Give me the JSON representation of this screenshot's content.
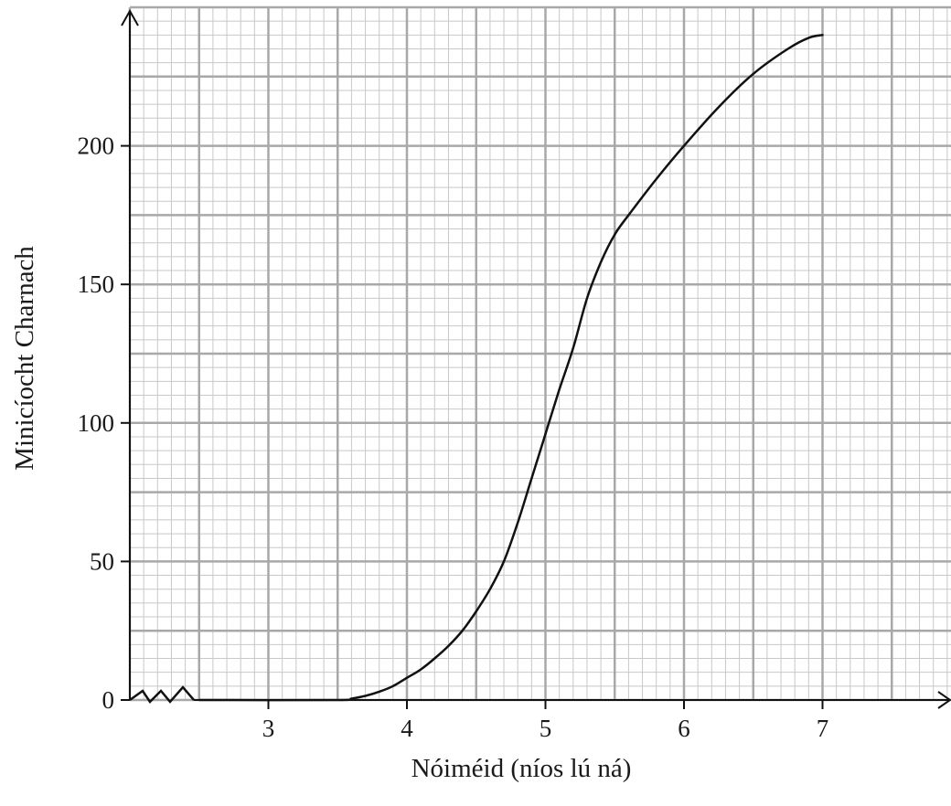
{
  "chart_data": {
    "type": "line",
    "title": "",
    "xlabel": "Nóiméid (níos lú ná)",
    "ylabel": "Minicíocht Charnach",
    "xlim": [
      2,
      7.9
    ],
    "ylim": [
      0,
      250
    ],
    "x_axis_break": true,
    "grid": true,
    "legend": "none",
    "x_ticks": [
      {
        "value": 3,
        "label": "3"
      },
      {
        "value": 4,
        "label": "4"
      },
      {
        "value": 5,
        "label": "5"
      },
      {
        "value": 6,
        "label": "6"
      },
      {
        "value": 7,
        "label": "7"
      }
    ],
    "y_ticks": [
      {
        "value": 0,
        "label": "0"
      },
      {
        "value": 50,
        "label": "50"
      },
      {
        "value": 100,
        "label": "100"
      },
      {
        "value": 150,
        "label": "150"
      },
      {
        "value": 200,
        "label": "200"
      }
    ],
    "series": [
      {
        "color": "#111111",
        "points": [
          [
            2.5,
            0
          ],
          [
            3.5,
            0
          ],
          [
            3.6,
            0.5
          ],
          [
            3.7,
            1.5
          ],
          [
            3.8,
            3
          ],
          [
            3.9,
            5
          ],
          [
            4.0,
            8
          ],
          [
            4.1,
            11
          ],
          [
            4.2,
            15
          ],
          [
            4.3,
            19.5
          ],
          [
            4.4,
            25
          ],
          [
            4.5,
            32
          ],
          [
            4.6,
            40
          ],
          [
            4.7,
            50
          ],
          [
            4.8,
            64
          ],
          [
            4.9,
            80
          ],
          [
            5.0,
            96
          ],
          [
            5.1,
            112
          ],
          [
            5.2,
            127
          ],
          [
            5.3,
            145
          ],
          [
            5.4,
            158
          ],
          [
            5.5,
            168
          ],
          [
            5.6,
            175
          ],
          [
            5.8,
            188
          ],
          [
            6.0,
            200
          ],
          [
            6.25,
            214
          ],
          [
            6.5,
            226
          ],
          [
            6.75,
            235
          ],
          [
            6.9,
            239
          ],
          [
            7.0,
            240
          ]
        ]
      }
    ]
  }
}
